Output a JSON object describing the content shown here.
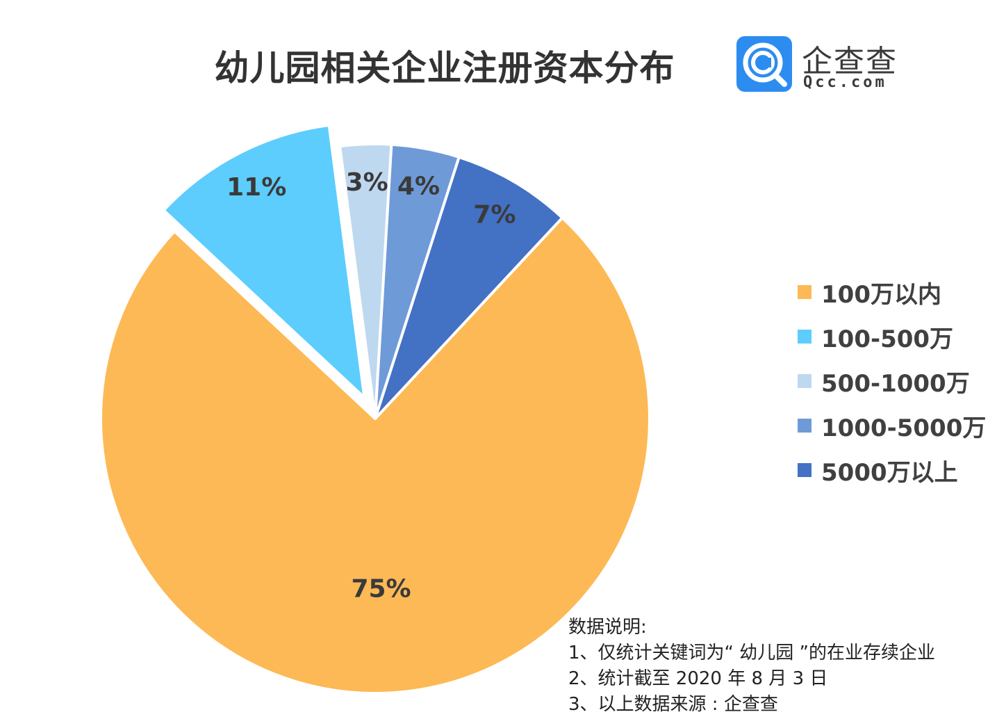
{
  "title": "幼儿园相关企业注册资本分布",
  "logo": {
    "name": "企查查",
    "domain": "Qcc.com",
    "brand_color": "#2d8cf0"
  },
  "chart_data": {
    "type": "pie",
    "title": "幼儿园相关企业注册资本分布",
    "slices": [
      {
        "label": "100万以内",
        "value": 75,
        "display": "75%",
        "color": "#fdb955",
        "exploded": false
      },
      {
        "label": "100-500万",
        "value": 11,
        "display": "11%",
        "color": "#5ccdfd",
        "exploded": true
      },
      {
        "label": "500-1000万",
        "value": 3,
        "display": "3%",
        "color": "#bed8ef",
        "exploded": false
      },
      {
        "label": "1000-5000万",
        "value": 4,
        "display": "4%",
        "color": "#6f9ad8",
        "exploded": false
      },
      {
        "label": "5000万以上",
        "value": 7,
        "display": "7%",
        "color": "#4371c4",
        "exploded": false
      }
    ],
    "legend_position": "right"
  },
  "notes": {
    "heading": "数据说明:",
    "lines": [
      "1、仅统计关键词为“ 幼儿园 ”的在业存续企业",
      "2、统计截至 2020 年 8 月 3 日",
      "3、以上数据来源 : 企查查"
    ]
  }
}
